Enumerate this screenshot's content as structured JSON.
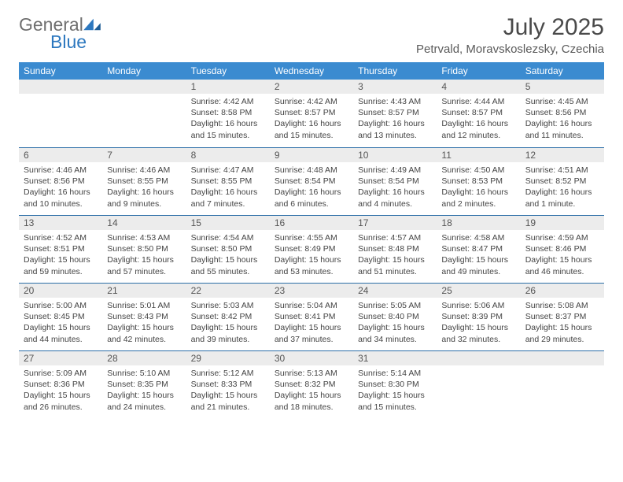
{
  "logo": {
    "general": "General",
    "blue": "Blue"
  },
  "title": "July 2025",
  "location": "Petrvald, Moravskoslezsky, Czechia",
  "columns": [
    "Sunday",
    "Monday",
    "Tuesday",
    "Wednesday",
    "Thursday",
    "Friday",
    "Saturday"
  ],
  "colors": {
    "header_bg": "#3b8bd0",
    "header_fg": "#ffffff",
    "daynum_bg": "#ececec",
    "daynum_border": "#2d6fa8",
    "text": "#444444",
    "logo_gray": "#6f6f6f",
    "logo_blue": "#2d78bf"
  },
  "weeks": [
    [
      null,
      null,
      {
        "n": "1",
        "sunrise": "4:42 AM",
        "sunset": "8:58 PM",
        "daylight": "16 hours and 15 minutes."
      },
      {
        "n": "2",
        "sunrise": "4:42 AM",
        "sunset": "8:57 PM",
        "daylight": "16 hours and 15 minutes."
      },
      {
        "n": "3",
        "sunrise": "4:43 AM",
        "sunset": "8:57 PM",
        "daylight": "16 hours and 13 minutes."
      },
      {
        "n": "4",
        "sunrise": "4:44 AM",
        "sunset": "8:57 PM",
        "daylight": "16 hours and 12 minutes."
      },
      {
        "n": "5",
        "sunrise": "4:45 AM",
        "sunset": "8:56 PM",
        "daylight": "16 hours and 11 minutes."
      }
    ],
    [
      {
        "n": "6",
        "sunrise": "4:46 AM",
        "sunset": "8:56 PM",
        "daylight": "16 hours and 10 minutes."
      },
      {
        "n": "7",
        "sunrise": "4:46 AM",
        "sunset": "8:55 PM",
        "daylight": "16 hours and 9 minutes."
      },
      {
        "n": "8",
        "sunrise": "4:47 AM",
        "sunset": "8:55 PM",
        "daylight": "16 hours and 7 minutes."
      },
      {
        "n": "9",
        "sunrise": "4:48 AM",
        "sunset": "8:54 PM",
        "daylight": "16 hours and 6 minutes."
      },
      {
        "n": "10",
        "sunrise": "4:49 AM",
        "sunset": "8:54 PM",
        "daylight": "16 hours and 4 minutes."
      },
      {
        "n": "11",
        "sunrise": "4:50 AM",
        "sunset": "8:53 PM",
        "daylight": "16 hours and 2 minutes."
      },
      {
        "n": "12",
        "sunrise": "4:51 AM",
        "sunset": "8:52 PM",
        "daylight": "16 hours and 1 minute."
      }
    ],
    [
      {
        "n": "13",
        "sunrise": "4:52 AM",
        "sunset": "8:51 PM",
        "daylight": "15 hours and 59 minutes."
      },
      {
        "n": "14",
        "sunrise": "4:53 AM",
        "sunset": "8:50 PM",
        "daylight": "15 hours and 57 minutes."
      },
      {
        "n": "15",
        "sunrise": "4:54 AM",
        "sunset": "8:50 PM",
        "daylight": "15 hours and 55 minutes."
      },
      {
        "n": "16",
        "sunrise": "4:55 AM",
        "sunset": "8:49 PM",
        "daylight": "15 hours and 53 minutes."
      },
      {
        "n": "17",
        "sunrise": "4:57 AM",
        "sunset": "8:48 PM",
        "daylight": "15 hours and 51 minutes."
      },
      {
        "n": "18",
        "sunrise": "4:58 AM",
        "sunset": "8:47 PM",
        "daylight": "15 hours and 49 minutes."
      },
      {
        "n": "19",
        "sunrise": "4:59 AM",
        "sunset": "8:46 PM",
        "daylight": "15 hours and 46 minutes."
      }
    ],
    [
      {
        "n": "20",
        "sunrise": "5:00 AM",
        "sunset": "8:45 PM",
        "daylight": "15 hours and 44 minutes."
      },
      {
        "n": "21",
        "sunrise": "5:01 AM",
        "sunset": "8:43 PM",
        "daylight": "15 hours and 42 minutes."
      },
      {
        "n": "22",
        "sunrise": "5:03 AM",
        "sunset": "8:42 PM",
        "daylight": "15 hours and 39 minutes."
      },
      {
        "n": "23",
        "sunrise": "5:04 AM",
        "sunset": "8:41 PM",
        "daylight": "15 hours and 37 minutes."
      },
      {
        "n": "24",
        "sunrise": "5:05 AM",
        "sunset": "8:40 PM",
        "daylight": "15 hours and 34 minutes."
      },
      {
        "n": "25",
        "sunrise": "5:06 AM",
        "sunset": "8:39 PM",
        "daylight": "15 hours and 32 minutes."
      },
      {
        "n": "26",
        "sunrise": "5:08 AM",
        "sunset": "8:37 PM",
        "daylight": "15 hours and 29 minutes."
      }
    ],
    [
      {
        "n": "27",
        "sunrise": "5:09 AM",
        "sunset": "8:36 PM",
        "daylight": "15 hours and 26 minutes."
      },
      {
        "n": "28",
        "sunrise": "5:10 AM",
        "sunset": "8:35 PM",
        "daylight": "15 hours and 24 minutes."
      },
      {
        "n": "29",
        "sunrise": "5:12 AM",
        "sunset": "8:33 PM",
        "daylight": "15 hours and 21 minutes."
      },
      {
        "n": "30",
        "sunrise": "5:13 AM",
        "sunset": "8:32 PM",
        "daylight": "15 hours and 18 minutes."
      },
      {
        "n": "31",
        "sunrise": "5:14 AM",
        "sunset": "8:30 PM",
        "daylight": "15 hours and 15 minutes."
      },
      null,
      null
    ]
  ],
  "labels": {
    "sunrise": "Sunrise: ",
    "sunset": "Sunset: ",
    "daylight": "Daylight: "
  }
}
